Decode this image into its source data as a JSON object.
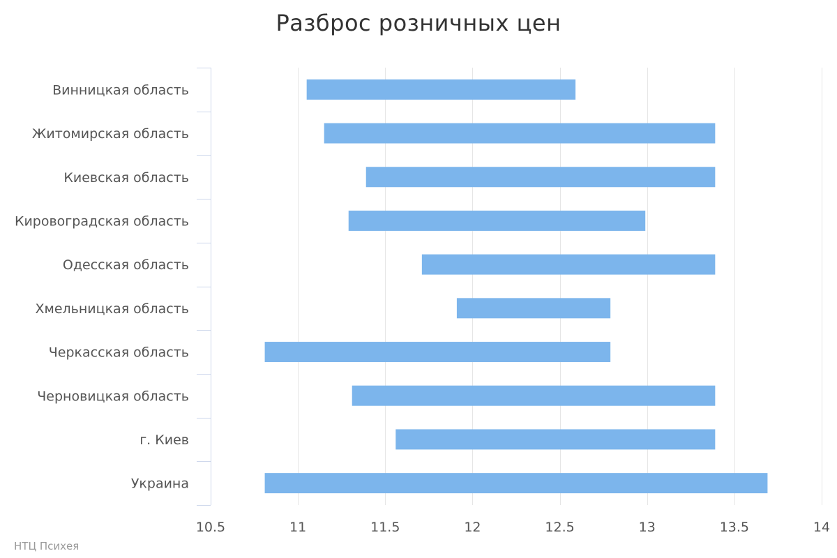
{
  "chart_data": {
    "type": "bar",
    "orientation": "horizontal",
    "style": "floating-range",
    "title": "Разброс розничных цен",
    "xlabel": "",
    "ylabel": "",
    "categories": [
      "Винницкая область",
      "Житомирская область",
      "Киевская область",
      "Кировоградская область",
      "Одесская область",
      "Хмельницкая область",
      "Черкасская область",
      "Черновицкая область",
      "г. Киев",
      "Украина"
    ],
    "ranges": [
      [
        11.05,
        12.59
      ],
      [
        11.15,
        13.39
      ],
      [
        11.39,
        13.39
      ],
      [
        11.29,
        12.99
      ],
      [
        11.71,
        13.39
      ],
      [
        11.91,
        12.79
      ],
      [
        10.81,
        12.79
      ],
      [
        11.31,
        13.39
      ],
      [
        11.56,
        13.39
      ],
      [
        10.81,
        13.69
      ]
    ],
    "xlim": [
      10.5,
      14
    ],
    "xticks": [
      "10.5",
      "11",
      "11.5",
      "12",
      "12.5",
      "13",
      "13.5",
      "14"
    ],
    "grid": true,
    "legend": "none",
    "colors": {
      "bar": "#7cb5ec",
      "grid": "#e6e6e6",
      "axis": "#ccd6eb"
    }
  },
  "credits": "НТЦ Психея"
}
